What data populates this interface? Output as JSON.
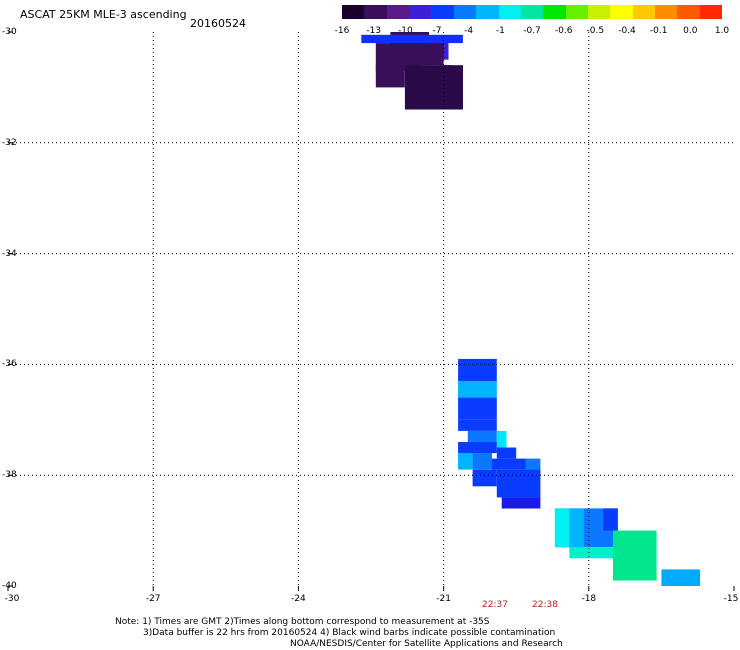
{
  "title": "ASCAT 25KM MLE-3 ascending",
  "date": "20160524",
  "colorbar": {
    "labels": [
      "-16",
      "-13",
      "-10",
      "-7",
      "-4",
      "-1",
      "-0.7",
      "-0.6",
      "-0.5",
      "-0.4",
      "-0.1",
      "0.0",
      "1.0"
    ],
    "colors": [
      "#1a0028",
      "#3a0f5a",
      "#5a1a8a",
      "#3b20d8",
      "#0a3cff",
      "#0a78ff",
      "#00b4ff",
      "#00f0f0",
      "#00e6a0",
      "#00e600",
      "#66f000",
      "#c8f000",
      "#ffff00",
      "#ffc800",
      "#ff8c00",
      "#ff5a00",
      "#ff2800"
    ]
  },
  "y_axis": {
    "labels": [
      "-30",
      "-32",
      "-34",
      "-36",
      "-38",
      "-40"
    ]
  },
  "x_axis": {
    "labels": [
      "-30",
      "-27",
      "-24",
      "-21",
      "-18",
      "-15"
    ]
  },
  "pass_times": [
    "22:37",
    "22:38"
  ],
  "notes": [
    "Note: 1) Times are GMT 2)Times along bottom correspond to measurement at -35S",
    "3)Data buffer is 22 hrs from 20160524 4) Black wind barbs indicate possible contamination",
    "NOAA/NESDIS/Center for Satellite Applications and Research"
  ],
  "chart_data": {
    "type": "heatmap",
    "title": "ASCAT 25KM MLE-3 ascending",
    "subtitle": "20160524",
    "xlim": [
      -30,
      -15
    ],
    "ylim": [
      -40,
      -30
    ],
    "x_ticks": [
      -30,
      -27,
      -24,
      -21,
      -18,
      -15
    ],
    "y_ticks": [
      -30,
      -32,
      -34,
      -36,
      -38,
      -40
    ],
    "grid": true,
    "cells": [
      {
        "lon0": -22.1,
        "lon1": -21.3,
        "lat0": -30.0,
        "lat1": -30.6,
        "color": "#3a0f5a"
      },
      {
        "lon0": -21.3,
        "lon1": -20.9,
        "lat0": -30.1,
        "lat1": -30.5,
        "color": "#3b20d8"
      },
      {
        "lon0": -22.7,
        "lon1": -20.6,
        "lat0": -30.05,
        "lat1": -30.2,
        "color": "#1030ff"
      },
      {
        "lon0": -22.4,
        "lon1": -21.5,
        "lat0": -30.2,
        "lat1": -30.7,
        "color": "#3a0f5a"
      },
      {
        "lon0": -21.5,
        "lon1": -21.0,
        "lat0": -30.2,
        "lat1": -30.6,
        "color": "#3a0f5a"
      },
      {
        "lon0": -21.8,
        "lon1": -20.8,
        "lat0": -30.6,
        "lat1": -31.4,
        "color": "#2a0a48"
      },
      {
        "lon0": -22.4,
        "lon1": -21.8,
        "lat0": -30.6,
        "lat1": -31.0,
        "color": "#3a0f5a"
      },
      {
        "lon0": -21.0,
        "lon1": -20.6,
        "lat0": -30.6,
        "lat1": -31.4,
        "color": "#2a0a48"
      },
      {
        "lon0": -20.7,
        "lon1": -19.9,
        "lat0": -35.9,
        "lat1": -36.3,
        "color": "#0a3cff"
      },
      {
        "lon0": -20.7,
        "lon1": -19.9,
        "lat0": -36.3,
        "lat1": -36.6,
        "color": "#00b4ff"
      },
      {
        "lon0": -20.7,
        "lon1": -19.9,
        "lat0": -36.6,
        "lat1": -37.0,
        "color": "#0a3cff"
      },
      {
        "lon0": -20.7,
        "lon1": -19.9,
        "lat0": -37.0,
        "lat1": -37.2,
        "color": "#0a3cff"
      },
      {
        "lon0": -20.5,
        "lon1": -19.9,
        "lat0": -37.2,
        "lat1": -37.4,
        "color": "#0a78ff"
      },
      {
        "lon0": -19.9,
        "lon1": -19.7,
        "lat0": -37.2,
        "lat1": -37.5,
        "color": "#00e6ff"
      },
      {
        "lon0": -20.7,
        "lon1": -19.9,
        "lat0": -37.4,
        "lat1": -37.6,
        "color": "#0a3cff"
      },
      {
        "lon0": -19.9,
        "lon1": -19.5,
        "lat0": -37.5,
        "lat1": -37.7,
        "color": "#0a3cff"
      },
      {
        "lon0": -20.7,
        "lon1": -20.4,
        "lat0": -37.6,
        "lat1": -37.9,
        "color": "#00b4ff"
      },
      {
        "lon0": -20.4,
        "lon1": -20.0,
        "lat0": -37.6,
        "lat1": -37.9,
        "color": "#0a78ff"
      },
      {
        "lon0": -20.0,
        "lon1": -19.3,
        "lat0": -37.7,
        "lat1": -37.9,
        "color": "#0a3cff"
      },
      {
        "lon0": -19.3,
        "lon1": -19.0,
        "lat0": -37.7,
        "lat1": -38.0,
        "color": "#0a78ff"
      },
      {
        "lon0": -20.4,
        "lon1": -19.9,
        "lat0": -37.9,
        "lat1": -38.2,
        "color": "#0a3cff"
      },
      {
        "lon0": -19.9,
        "lon1": -19.0,
        "lat0": -37.9,
        "lat1": -38.4,
        "color": "#0a3cff"
      },
      {
        "lon0": -19.8,
        "lon1": -19.0,
        "lat0": -38.4,
        "lat1": -38.6,
        "color": "#1a1ae8"
      },
      {
        "lon0": -18.7,
        "lon1": -17.4,
        "lat0": -38.6,
        "lat1": -39.3,
        "color": "#0a78ff"
      },
      {
        "lon0": -18.7,
        "lon1": -18.4,
        "lat0": -38.6,
        "lat1": -39.3,
        "color": "#00f0f0"
      },
      {
        "lon0": -18.4,
        "lon1": -18.1,
        "lat0": -38.6,
        "lat1": -39.4,
        "color": "#00b4ff"
      },
      {
        "lon0": -17.7,
        "lon1": -17.4,
        "lat0": -38.6,
        "lat1": -39.0,
        "color": "#0a3cff"
      },
      {
        "lon0": -18.4,
        "lon1": -17.4,
        "lat0": -39.3,
        "lat1": -39.5,
        "color": "#00f0c8"
      },
      {
        "lon0": -17.5,
        "lon1": -16.6,
        "lat0": -39.0,
        "lat1": -39.9,
        "color": "#00e68c"
      },
      {
        "lon0": -16.5,
        "lon1": -15.7,
        "lat0": -39.7,
        "lat1": -40.0,
        "color": "#00aaff"
      }
    ]
  }
}
